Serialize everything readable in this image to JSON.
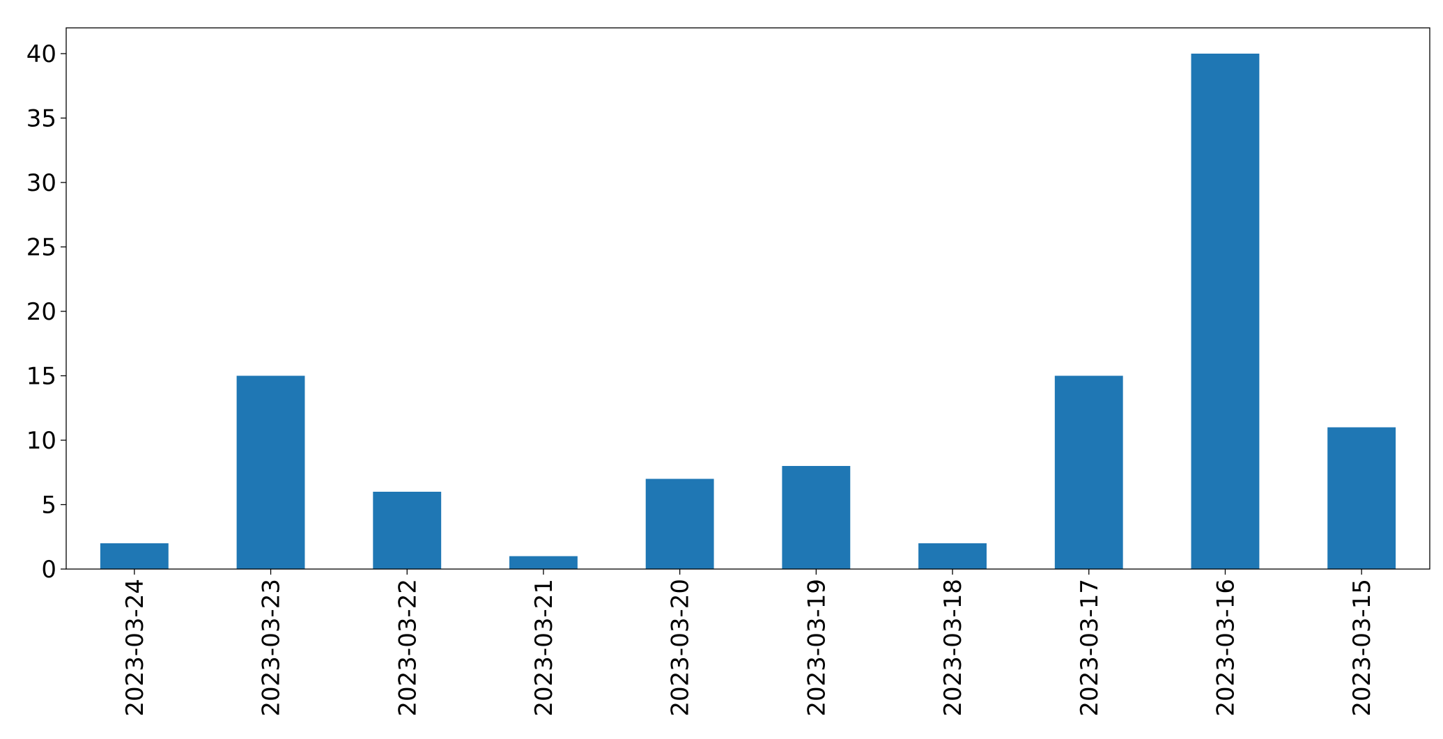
{
  "chart_data": {
    "type": "bar",
    "categories": [
      "2023-03-24",
      "2023-03-23",
      "2023-03-22",
      "2023-03-21",
      "2023-03-20",
      "2023-03-19",
      "2023-03-18",
      "2023-03-17",
      "2023-03-16",
      "2023-03-15"
    ],
    "values": [
      2,
      15,
      6,
      1,
      7,
      8,
      2,
      15,
      40,
      11
    ],
    "color": "#1f77b4",
    "ylim": [
      0,
      42
    ],
    "yticks": [
      0,
      5,
      10,
      15,
      20,
      25,
      30,
      35,
      40
    ],
    "grid": false
  }
}
